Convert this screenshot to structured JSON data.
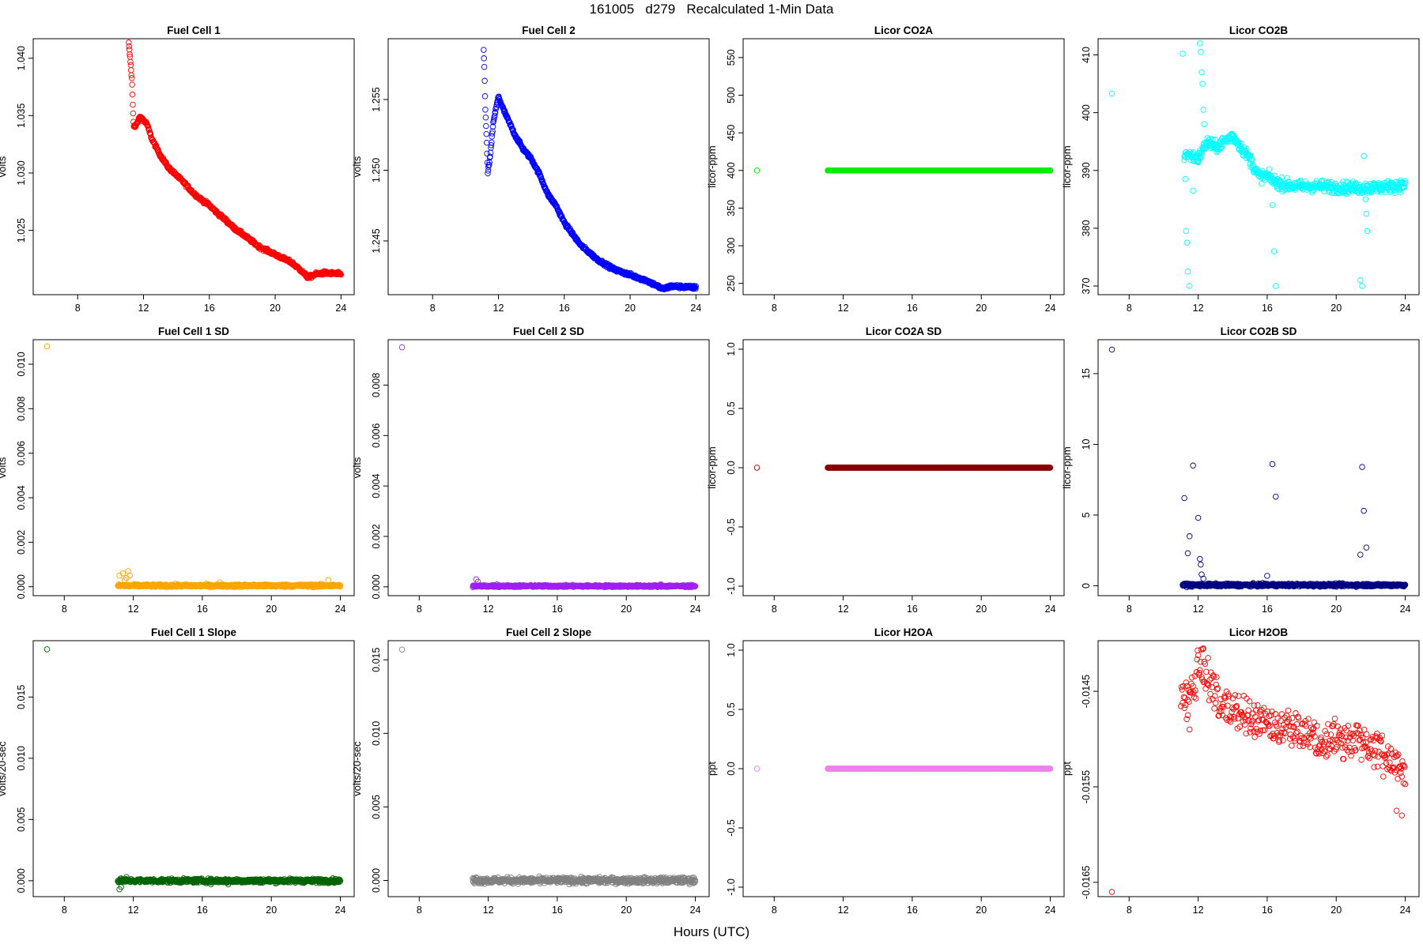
{
  "figure": {
    "title": "161005   d279   Recalculated 1-Min Data",
    "xlabel": "Hours (UTC)"
  },
  "chart_data": [
    {
      "id": "fc1",
      "type": "scatter",
      "title": "Fuel Cell 1",
      "ylabel": "volts",
      "color": "#ff0000",
      "xlim": [
        5.3,
        24.8
      ],
      "ylim": [
        1.0194,
        1.0417
      ],
      "xticks": [
        8,
        12,
        16,
        20,
        24
      ],
      "yticks": [
        1.025,
        1.03,
        1.035,
        1.04
      ],
      "yticklabels": [
        "1.025",
        "1.030",
        "1.035",
        "1.040"
      ],
      "outliers": [],
      "dense_fill": 0.8,
      "jitter": 7e-05,
      "bandwidth": 0,
      "gen": {
        "x0": 11.1,
        "x1": 24,
        "pts": [
          [
            11.1,
            1.0413
          ],
          [
            11.2,
            1.0398
          ],
          [
            11.3,
            1.038
          ],
          [
            11.35,
            1.036
          ],
          [
            11.4,
            1.0342
          ],
          [
            11.5,
            1.034
          ],
          [
            11.8,
            1.0349
          ],
          [
            12.2,
            1.0343
          ],
          [
            12.5,
            1.033
          ],
          [
            13,
            1.0316
          ],
          [
            13.5,
            1.0305
          ],
          [
            14,
            1.0298
          ],
          [
            14.5,
            1.0291
          ],
          [
            15,
            1.0283
          ],
          [
            15.5,
            1.0277
          ],
          [
            16,
            1.0272
          ],
          [
            16.5,
            1.0265
          ],
          [
            17,
            1.0259
          ],
          [
            17.5,
            1.0252
          ],
          [
            18,
            1.0247
          ],
          [
            19,
            1.0236
          ],
          [
            20,
            1.0229
          ],
          [
            21,
            1.0222
          ],
          [
            21.5,
            1.0216
          ],
          [
            22,
            1.0209
          ],
          [
            22.5,
            1.0212
          ],
          [
            23,
            1.0213
          ],
          [
            24,
            1.0212
          ]
        ]
      }
    },
    {
      "id": "fc2",
      "type": "scatter",
      "title": "Fuel Cell 2",
      "ylabel": "volts",
      "color": "#0000ff",
      "xlim": [
        5.3,
        24.8
      ],
      "ylim": [
        1.2412,
        1.2593
      ],
      "xticks": [
        8,
        12,
        16,
        20,
        24
      ],
      "yticks": [
        1.245,
        1.25,
        1.255
      ],
      "yticklabels": [
        "1.245",
        "1.250",
        "1.255"
      ],
      "outliers": [],
      "dense_fill": 0.8,
      "jitter": 6e-05,
      "bandwidth": 0,
      "gen": {
        "x0": 11.1,
        "x1": 24,
        "pts": [
          [
            11.1,
            1.2585
          ],
          [
            11.15,
            1.257
          ],
          [
            11.2,
            1.2545
          ],
          [
            11.3,
            1.2515
          ],
          [
            11.35,
            1.2498
          ],
          [
            11.5,
            1.251
          ],
          [
            11.7,
            1.2535
          ],
          [
            12,
            1.2552
          ],
          [
            12.3,
            1.2543
          ],
          [
            13,
            1.2525
          ],
          [
            13.5,
            1.2515
          ],
          [
            14,
            1.2508
          ],
          [
            14.5,
            1.2497
          ],
          [
            15,
            1.2483
          ],
          [
            15.5,
            1.2475
          ],
          [
            16,
            1.2463
          ],
          [
            16.5,
            1.2455
          ],
          [
            17,
            1.2447
          ],
          [
            18,
            1.2437
          ],
          [
            19,
            1.243
          ],
          [
            20,
            1.2426
          ],
          [
            21,
            1.2422
          ],
          [
            21.5,
            1.2419
          ],
          [
            22,
            1.2416
          ],
          [
            22.5,
            1.2418
          ],
          [
            24,
            1.2417
          ]
        ]
      }
    },
    {
      "id": "co2a",
      "type": "scatter",
      "title": "Licor CO2A",
      "ylabel": "licor-ppm",
      "color": "#00ee00",
      "xlim": [
        6.2,
        24.8
      ],
      "ylim": [
        235,
        575
      ],
      "xticks": [
        8,
        12,
        16,
        20,
        24
      ],
      "yticks": [
        250,
        300,
        350,
        400,
        450,
        500,
        550
      ],
      "yticklabels": [
        "250",
        "300",
        "350",
        "400",
        "450",
        "500",
        "550"
      ],
      "outliers": [
        [
          7,
          400
        ]
      ],
      "dense_fill": 1,
      "jitter": 0,
      "bandwidth": 0,
      "gen": {
        "x0": 11.1,
        "x1": 24,
        "pts": [
          [
            11.1,
            400
          ],
          [
            24,
            400
          ]
        ]
      }
    },
    {
      "id": "co2b",
      "type": "scatter",
      "title": "Licor CO2B",
      "ylabel": "licor-ppm",
      "color": "#00ffff",
      "xlim": [
        6.2,
        24.8
      ],
      "ylim": [
        368.5,
        412.8
      ],
      "xticks": [
        8,
        12,
        16,
        20,
        24
      ],
      "yticks": [
        370,
        380,
        390,
        400,
        410
      ],
      "yticklabels": [
        "370",
        "380",
        "390",
        "400",
        "410"
      ],
      "outliers": [
        [
          7,
          403.3
        ],
        [
          11.1,
          410.2
        ],
        [
          11.2,
          391.8
        ],
        [
          11.25,
          388.5
        ],
        [
          11.3,
          379.5
        ],
        [
          11.35,
          377.5
        ],
        [
          11.4,
          372.5
        ],
        [
          11.5,
          370
        ],
        [
          11.7,
          386.5
        ],
        [
          11.9,
          392.5
        ],
        [
          12.1,
          412
        ],
        [
          12.15,
          410.5
        ],
        [
          12.2,
          407
        ],
        [
          12.25,
          405
        ],
        [
          12.3,
          400.5
        ],
        [
          12.35,
          398
        ],
        [
          16.3,
          384
        ],
        [
          16.4,
          376
        ],
        [
          16.5,
          370
        ],
        [
          21.4,
          371
        ],
        [
          21.5,
          370
        ],
        [
          21.6,
          392.5
        ],
        [
          21.7,
          385
        ],
        [
          21.75,
          382.5
        ],
        [
          21.8,
          379.5
        ]
      ],
      "dense_fill": 0.75,
      "jitter": 0.5,
      "bandwidth": 0,
      "gen": {
        "x0": 11.2,
        "x1": 24,
        "pts": [
          [
            11.2,
            393
          ],
          [
            12,
            392
          ],
          [
            12.5,
            395
          ],
          [
            13,
            394
          ],
          [
            13.5,
            395
          ],
          [
            14,
            396
          ],
          [
            14.5,
            394
          ],
          [
            15,
            392
          ],
          [
            15.5,
            389
          ],
          [
            16,
            389
          ],
          [
            16.5,
            388
          ],
          [
            17,
            387.5
          ],
          [
            18,
            387.2
          ],
          [
            19,
            387.3
          ],
          [
            20,
            387.1
          ],
          [
            21,
            387
          ],
          [
            22,
            387
          ],
          [
            23,
            387.2
          ],
          [
            24,
            387.5
          ]
        ]
      }
    },
    {
      "id": "fc1sd",
      "type": "scatter",
      "title": "Fuel Cell 1 SD",
      "ylabel": "volts",
      "color": "#ffa500",
      "xlim": [
        6.2,
        24.8
      ],
      "ylim": [
        -0.0004,
        0.0111
      ],
      "xticks": [
        8,
        12,
        16,
        20,
        24
      ],
      "yticks": [
        0,
        0.002,
        0.004,
        0.006,
        0.008,
        0.01
      ],
      "yticklabels": [
        "0.000",
        "0.002",
        "0.004",
        "0.006",
        "0.008",
        "0.010"
      ],
      "outliers": [
        [
          7,
          0.0108
        ],
        [
          11.2,
          0.0005
        ],
        [
          11.4,
          0.0006
        ],
        [
          11.5,
          0.0003
        ],
        [
          11.6,
          0.0004
        ],
        [
          11.7,
          0.0007
        ],
        [
          11.8,
          0.0005
        ],
        [
          17,
          0.0002
        ],
        [
          23.3,
          0.0003
        ]
      ],
      "dense_fill": 0.8,
      "jitter": 3e-05,
      "bandwidth": 0,
      "gen": {
        "x0": 11.1,
        "x1": 24,
        "pts": [
          [
            11.1,
            5e-05
          ],
          [
            24,
            5e-05
          ]
        ]
      }
    },
    {
      "id": "fc2sd",
      "type": "scatter",
      "title": "Fuel Cell 2 SD",
      "ylabel": "volts",
      "color": "#a020f0",
      "xlim": [
        6.2,
        24.8
      ],
      "ylim": [
        -0.00035,
        0.0098
      ],
      "xticks": [
        8,
        12,
        16,
        20,
        24
      ],
      "yticks": [
        0,
        0.002,
        0.004,
        0.006,
        0.008
      ],
      "yticklabels": [
        "0.000",
        "0.002",
        "0.004",
        "0.006",
        "0.008"
      ],
      "outliers": [
        [
          7,
          0.0095
        ],
        [
          11.3,
          0.0003
        ],
        [
          11.4,
          0.0002
        ],
        [
          12.5,
          0.0001
        ],
        [
          22,
          0.0001
        ]
      ],
      "dense_fill": 0.8,
      "jitter": 2e-05,
      "bandwidth": 0,
      "gen": {
        "x0": 11.1,
        "x1": 24,
        "pts": [
          [
            11.1,
            3e-05
          ],
          [
            24,
            3e-05
          ]
        ]
      }
    },
    {
      "id": "co2asd",
      "type": "scatter",
      "title": "Licor CO2A SD",
      "ylabel": "licor-ppm",
      "color": "#8b0000",
      "xlim": [
        6.2,
        24.8
      ],
      "ylim": [
        -1.08,
        1.08
      ],
      "xticks": [
        8,
        12,
        16,
        20,
        24
      ],
      "yticks": [
        -1,
        -0.5,
        0,
        0.5,
        1
      ],
      "yticklabels": [
        "-1.0",
        "-0.5",
        "0.0",
        "0.5",
        "1.0"
      ],
      "outliers": [
        [
          7,
          0
        ]
      ],
      "dense_fill": 1,
      "jitter": 0,
      "bandwidth": 0,
      "gen": {
        "x0": 11.1,
        "x1": 24,
        "pts": [
          [
            11.1,
            0
          ],
          [
            24,
            0
          ]
        ]
      }
    },
    {
      "id": "co2bsd",
      "type": "scatter",
      "title": "Licor CO2B SD",
      "ylabel": "licor-ppm",
      "color": "#000080",
      "xlim": [
        6.2,
        24.8
      ],
      "ylim": [
        -0.7,
        17.4
      ],
      "xticks": [
        8,
        12,
        16,
        20,
        24
      ],
      "yticks": [
        0,
        5,
        10,
        15
      ],
      "yticklabels": [
        "0",
        "5",
        "10",
        "15"
      ],
      "outliers": [
        [
          7,
          16.7
        ],
        [
          11.2,
          6.2
        ],
        [
          11.4,
          2.3
        ],
        [
          11.5,
          3.5
        ],
        [
          11.7,
          8.5
        ],
        [
          12,
          4.8
        ],
        [
          12.1,
          1.9
        ],
        [
          12.15,
          1.5
        ],
        [
          12.2,
          0.8
        ],
        [
          12.3,
          0.5
        ],
        [
          16,
          0.7
        ],
        [
          16.3,
          8.6
        ],
        [
          16.5,
          6.3
        ],
        [
          21.4,
          2.2
        ],
        [
          21.5,
          8.4
        ],
        [
          21.6,
          5.3
        ],
        [
          21.75,
          2.7
        ]
      ],
      "dense_fill": 0.8,
      "jitter": 0.05,
      "bandwidth": 0,
      "gen": {
        "x0": 11.1,
        "x1": 24,
        "pts": [
          [
            11.1,
            0.05
          ],
          [
            24,
            0.05
          ]
        ]
      }
    },
    {
      "id": "fc1slope",
      "type": "scatter",
      "title": "Fuel Cell 1 Slope",
      "ylabel": "volts/20-sec",
      "color": "#006400",
      "xlim": [
        6.2,
        24.8
      ],
      "ylim": [
        -0.0013,
        0.0196
      ],
      "xticks": [
        8,
        12,
        16,
        20,
        24
      ],
      "yticks": [
        0,
        0.005,
        0.01,
        0.015
      ],
      "yticklabels": [
        "0.000",
        "0.005",
        "0.010",
        "0.015"
      ],
      "outliers": [
        [
          7,
          0.0189
        ],
        [
          11.2,
          -0.0007
        ],
        [
          11.3,
          -0.0005
        ],
        [
          11.6,
          0.0003
        ],
        [
          16.5,
          -0.0003
        ],
        [
          17.5,
          -0.0003
        ]
      ],
      "dense_fill": 0.8,
      "jitter": 8e-05,
      "bandwidth": 0,
      "gen": {
        "x0": 11.1,
        "x1": 24,
        "pts": [
          [
            11.1,
            0
          ],
          [
            24,
            0
          ]
        ]
      }
    },
    {
      "id": "fc2slope",
      "type": "scatter",
      "title": "Fuel Cell 2 Slope",
      "ylabel": "volts/20-sec",
      "color": "#808080",
      "xlim": [
        6.2,
        24.8
      ],
      "ylim": [
        -0.0011,
        0.0163
      ],
      "xticks": [
        8,
        12,
        16,
        20,
        24
      ],
      "yticks": [
        0,
        0.005,
        0.01,
        0.015
      ],
      "yticklabels": [
        "0.000",
        "0.005",
        "0.010",
        "0.015"
      ],
      "outliers": [
        [
          7,
          0.0157
        ],
        [
          11.2,
          -0.0002
        ],
        [
          11.3,
          0.0002
        ],
        [
          15,
          -0.0002
        ],
        [
          22,
          0.0002
        ]
      ],
      "dense_fill": 0.8,
      "jitter": 0.0001,
      "bandwidth": 0,
      "gen": {
        "x0": 11.1,
        "x1": 24,
        "pts": [
          [
            11.1,
            0
          ],
          [
            24,
            0
          ]
        ]
      }
    },
    {
      "id": "h2oa",
      "type": "scatter",
      "title": "Licor H2OA",
      "ylabel": "ppt",
      "color": "#ee82ee",
      "xlim": [
        6.2,
        24.8
      ],
      "ylim": [
        -1.08,
        1.08
      ],
      "xticks": [
        8,
        12,
        16,
        20,
        24
      ],
      "yticks": [
        -1,
        -0.5,
        0,
        0.5,
        1
      ],
      "yticklabels": [
        "-1.0",
        "-0.5",
        "0.0",
        "0.5",
        "1.0"
      ],
      "outliers": [
        [
          7,
          0
        ]
      ],
      "dense_fill": 1,
      "jitter": 0,
      "bandwidth": 0,
      "gen": {
        "x0": 11.1,
        "x1": 24,
        "pts": [
          [
            11.1,
            0
          ],
          [
            24,
            0
          ]
        ]
      }
    },
    {
      "id": "h2ob",
      "type": "scatter",
      "title": "Licor H2OB",
      "ylabel": "ppt",
      "color": "#ff0000",
      "xlim": [
        6.2,
        24.8
      ],
      "ylim": [
        -0.01665,
        -0.01397
      ],
      "xticks": [
        8,
        12,
        16,
        20,
        24
      ],
      "yticks": [
        -0.0165,
        -0.0155,
        -0.0145
      ],
      "yticklabels": [
        "-0.0165",
        "-0.0155",
        "-0.0145"
      ],
      "outliers": [
        [
          7,
          -0.0166
        ],
        [
          11.4,
          -0.01475
        ],
        [
          11.5,
          -0.0149
        ],
        [
          12.3,
          -0.01405
        ],
        [
          23.5,
          -0.01575
        ],
        [
          23.8,
          -0.0158
        ]
      ],
      "dense_fill": 0.5,
      "jitter": 2e-05,
      "bandwidth": 0.00022,
      "gen": {
        "x0": 11,
        "x1": 24,
        "pts": [
          [
            11,
            -0.01445
          ],
          [
            11.3,
            -0.0146
          ],
          [
            11.6,
            -0.01455
          ],
          [
            12,
            -0.01425
          ],
          [
            12.3,
            -0.0142
          ],
          [
            12.6,
            -0.0144
          ],
          [
            13,
            -0.01455
          ],
          [
            13.5,
            -0.01465
          ],
          [
            14,
            -0.01468
          ],
          [
            15,
            -0.01475
          ],
          [
            16,
            -0.01482
          ],
          [
            17,
            -0.01488
          ],
          [
            18,
            -0.01495
          ],
          [
            19,
            -0.015
          ],
          [
            20,
            -0.015
          ],
          [
            21,
            -0.01502
          ],
          [
            22,
            -0.01508
          ],
          [
            23,
            -0.0152
          ],
          [
            24,
            -0.01535
          ]
        ]
      }
    }
  ]
}
